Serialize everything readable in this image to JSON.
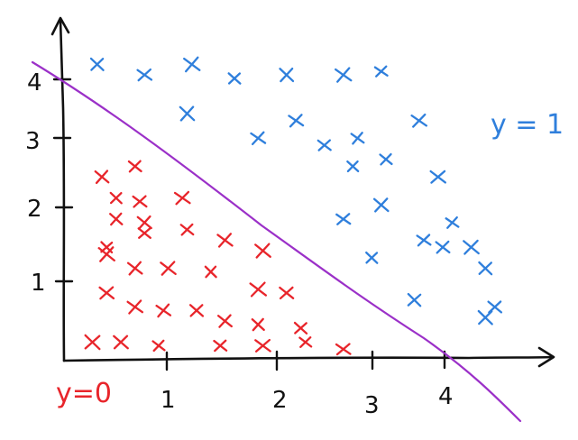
{
  "chart_data": {
    "type": "scatter",
    "x_ticks": [
      "1",
      "2",
      "3",
      "4"
    ],
    "y_ticks": [
      "1",
      "2",
      "3",
      "4"
    ],
    "boundary": {
      "x": [
        0,
        4
      ],
      "y": [
        4,
        0
      ],
      "color": "#9b30c8"
    },
    "series": [
      {
        "name": "y=0",
        "color": "#e8252b",
        "marker": "x",
        "points": [
          [
            0.4,
            2.6
          ],
          [
            0.75,
            2.75
          ],
          [
            0.55,
            2.3
          ],
          [
            0.8,
            2.25
          ],
          [
            1.25,
            2.3
          ],
          [
            0.55,
            2.0
          ],
          [
            0.85,
            1.95
          ],
          [
            0.45,
            1.6
          ],
          [
            0.85,
            1.8
          ],
          [
            1.3,
            1.85
          ],
          [
            1.7,
            1.7
          ],
          [
            0.45,
            1.5
          ],
          [
            0.75,
            1.3
          ],
          [
            1.1,
            1.3
          ],
          [
            1.55,
            1.25
          ],
          [
            2.1,
            1.55
          ],
          [
            0.45,
            0.95
          ],
          [
            0.75,
            0.75
          ],
          [
            1.05,
            0.7
          ],
          [
            1.4,
            0.7
          ],
          [
            2.05,
            1.0
          ],
          [
            2.35,
            0.95
          ],
          [
            1.7,
            0.55
          ],
          [
            2.05,
            0.5
          ],
          [
            2.5,
            0.45
          ],
          [
            0.3,
            0.25
          ],
          [
            0.6,
            0.25
          ],
          [
            1.0,
            0.2
          ],
          [
            1.65,
            0.2
          ],
          [
            2.1,
            0.2
          ],
          [
            2.55,
            0.25
          ],
          [
            2.95,
            0.15
          ]
        ]
      },
      {
        "name": "y=1",
        "color": "#2f7fdc",
        "marker": "x",
        "points": [
          [
            0.35,
            4.2
          ],
          [
            0.85,
            4.05
          ],
          [
            1.35,
            4.2
          ],
          [
            1.8,
            4.0
          ],
          [
            2.35,
            4.05
          ],
          [
            2.95,
            4.05
          ],
          [
            3.35,
            4.1
          ],
          [
            1.3,
            3.5
          ],
          [
            2.05,
            3.15
          ],
          [
            2.45,
            3.4
          ],
          [
            2.75,
            3.05
          ],
          [
            3.1,
            3.15
          ],
          [
            3.75,
            3.4
          ],
          [
            3.4,
            2.85
          ],
          [
            3.05,
            2.75
          ],
          [
            3.95,
            2.6
          ],
          [
            3.35,
            2.2
          ],
          [
            2.95,
            2.0
          ],
          [
            4.1,
            1.95
          ],
          [
            3.8,
            1.7
          ],
          [
            4.0,
            1.6
          ],
          [
            4.3,
            1.6
          ],
          [
            3.25,
            1.45
          ],
          [
            4.45,
            1.3
          ],
          [
            3.7,
            0.85
          ],
          [
            4.55,
            0.75
          ],
          [
            4.45,
            0.6
          ]
        ]
      }
    ]
  },
  "annotations": {
    "class_0_label": "y=0",
    "class_1_label": "y = 1"
  }
}
